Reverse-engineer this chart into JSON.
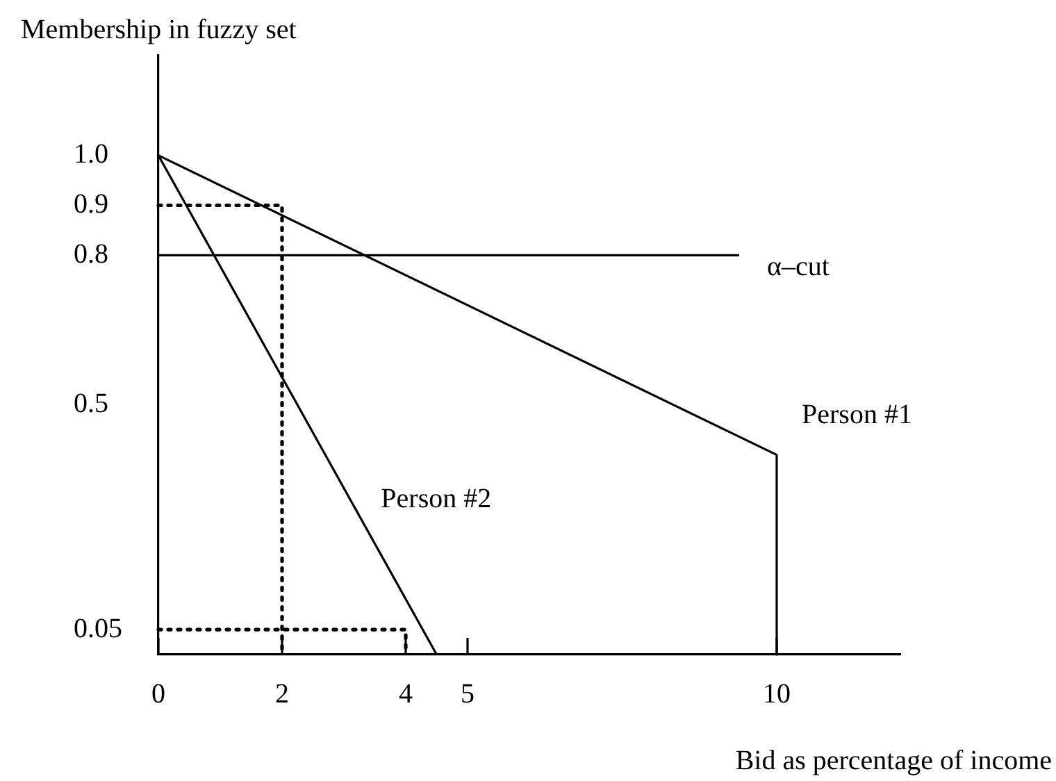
{
  "chart_data": {
    "type": "line",
    "xlabel": "Bid as percentage of income",
    "ylabel": "Membership in fuzzy set",
    "series": [
      {
        "name": "Person #1",
        "color": "#000000",
        "x": [
          0,
          10,
          10
        ],
        "values": [
          1,
          0.4,
          0
        ]
      },
      {
        "name": "Person #2",
        "color": "#000000",
        "x": [
          0,
          4.5
        ],
        "values": [
          1,
          0
        ]
      },
      {
        "color": "#000000",
        "x": [
          0,
          2,
          2
        ],
        "values": [
          0.9,
          0.9,
          0
        ],
        "line_style": "dotted"
      },
      {
        "color": "#000000",
        "x": [
          0,
          4,
          4
        ],
        "values": [
          0.05,
          0.05,
          0
        ],
        "line_style": "dotted"
      }
    ],
    "xlim": [
      0,
      12
    ],
    "ylim": [
      0,
      1.2
    ],
    "xticks": [
      0,
      2,
      4,
      5,
      10
    ],
    "yticks": [
      0.05,
      0.5,
      0.8,
      0.9,
      {
        "value": 1,
        "label": "1.0"
      }
    ],
    "ref_lines": [
      {
        "axis": "y",
        "value": 0.8,
        "label": "α–cut",
        "color": "#000000"
      }
    ],
    "marker": "none",
    "line_style": "solid"
  }
}
